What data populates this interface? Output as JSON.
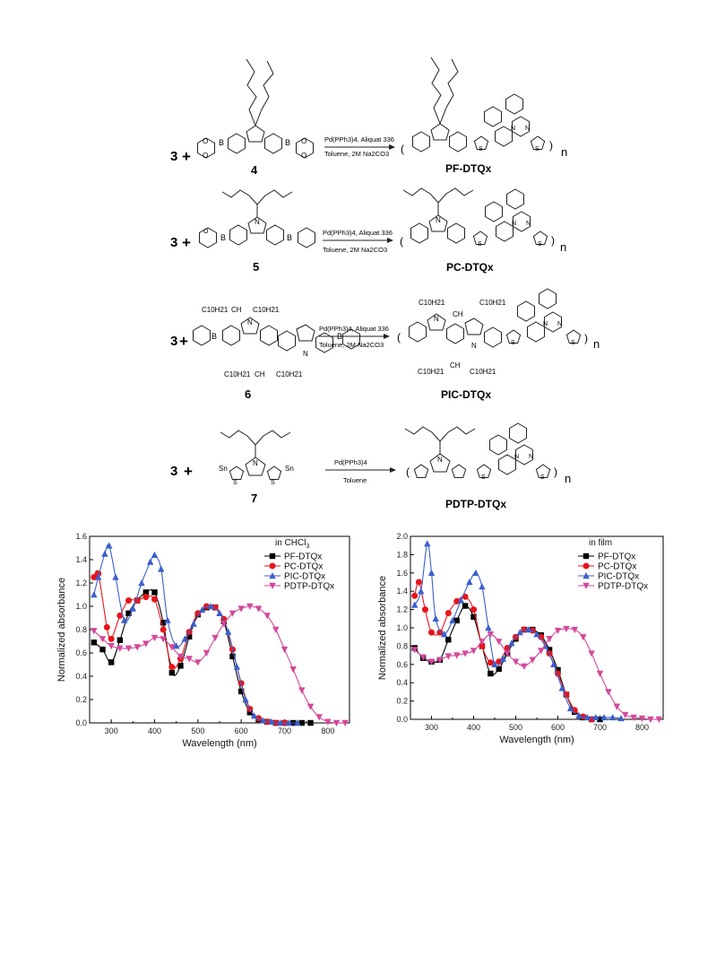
{
  "scheme": {
    "reactions": [
      {
        "reagent_prefix": "3",
        "monomer_label": "4",
        "conditions_top": "Pd(PPh3)4, Aliquat 336",
        "conditions_bottom": "Toluene, 2M Na2CO3",
        "product": "PF-DTQx"
      },
      {
        "reagent_prefix": "3",
        "monomer_label": "5",
        "conditions_top": "Pd(PPh3)4, Aliquat 336",
        "conditions_bottom": "Toluene, 2M Na2CO3",
        "product": "PC-DTQx"
      },
      {
        "reagent_prefix": "3",
        "monomer_label": "6",
        "conditions_top": "Pd(PPh3)4, Aliquat 336",
        "conditions_bottom": "Toluene, 2M Na2CO3",
        "product": "PIC-DTQx"
      },
      {
        "reagent_prefix": "3",
        "monomer_label": "7",
        "conditions_top": "Pd(PPh3)4",
        "conditions_bottom": "Toluene",
        "product": "PDTP-DTQx"
      }
    ],
    "atom_labels": {
      "boron": "B",
      "oxygen": "O",
      "nitrogen": "N",
      "sulfur": "S",
      "tin": "Sn",
      "repeat": "n",
      "alkyl": "C10H21",
      "ch": "CH"
    }
  },
  "chart_data": [
    {
      "type": "line",
      "legend_title": "in CHCl3",
      "xlabel": "Wavelength (nm)",
      "ylabel": "Normalized absorbance",
      "xlim": [
        250,
        850
      ],
      "ylim": [
        0.0,
        1.6
      ],
      "xticks": [
        300,
        400,
        500,
        600,
        700,
        800
      ],
      "yticks": [
        0.0,
        0.2,
        0.4,
        0.6,
        0.8,
        1.0,
        1.2,
        1.4,
        1.6
      ],
      "legend_position": "top-right",
      "series": [
        {
          "name": "PF-DTQx",
          "color": "#000000",
          "marker": "square",
          "points": [
            [
              260,
              0.69
            ],
            [
              280,
              0.63
            ],
            [
              300,
              0.52
            ],
            [
              320,
              0.71
            ],
            [
              340,
              0.94
            ],
            [
              360,
              1.05
            ],
            [
              380,
              1.12
            ],
            [
              400,
              1.12
            ],
            [
              420,
              0.86
            ],
            [
              440,
              0.43
            ],
            [
              460,
              0.49
            ],
            [
              480,
              0.74
            ],
            [
              500,
              0.93
            ],
            [
              520,
              0.99
            ],
            [
              540,
              0.99
            ],
            [
              560,
              0.87
            ],
            [
              580,
              0.57
            ],
            [
              600,
              0.27
            ],
            [
              620,
              0.09
            ],
            [
              640,
              0.03
            ],
            [
              660,
              0.01
            ],
            [
              680,
              0.0
            ],
            [
              700,
              0.0
            ],
            [
              720,
              0.0
            ],
            [
              740,
              0.0
            ],
            [
              760,
              0.0
            ]
          ]
        },
        {
          "name": "PC-DTQx",
          "color": "#e8141b",
          "marker": "circle",
          "points": [
            [
              260,
              1.25
            ],
            [
              270,
              1.28
            ],
            [
              290,
              0.82
            ],
            [
              300,
              0.72
            ],
            [
              320,
              0.92
            ],
            [
              340,
              1.05
            ],
            [
              360,
              1.05
            ],
            [
              380,
              1.08
            ],
            [
              400,
              1.06
            ],
            [
              420,
              0.8
            ],
            [
              440,
              0.48
            ],
            [
              460,
              0.55
            ],
            [
              480,
              0.78
            ],
            [
              500,
              0.94
            ],
            [
              520,
              1.0
            ],
            [
              540,
              0.99
            ],
            [
              560,
              0.89
            ],
            [
              580,
              0.63
            ],
            [
              600,
              0.34
            ],
            [
              620,
              0.12
            ],
            [
              640,
              0.04
            ],
            [
              660,
              0.01
            ],
            [
              680,
              0.0
            ],
            [
              700,
              0.0
            ]
          ]
        },
        {
          "name": "PIC-DTQx",
          "color": "#3a5fcd",
          "marker": "triangle-up",
          "points": [
            [
              260,
              1.1
            ],
            [
              270,
              1.25
            ],
            [
              285,
              1.45
            ],
            [
              295,
              1.52
            ],
            [
              310,
              1.25
            ],
            [
              330,
              0.88
            ],
            [
              350,
              0.98
            ],
            [
              370,
              1.2
            ],
            [
              390,
              1.38
            ],
            [
              400,
              1.44
            ],
            [
              415,
              1.32
            ],
            [
              430,
              0.88
            ],
            [
              450,
              0.66
            ],
            [
              470,
              0.72
            ],
            [
              490,
              0.85
            ],
            [
              510,
              0.97
            ],
            [
              530,
              1.0
            ],
            [
              550,
              0.94
            ],
            [
              570,
              0.78
            ],
            [
              590,
              0.48
            ],
            [
              610,
              0.2
            ],
            [
              630,
              0.06
            ],
            [
              650,
              0.02
            ],
            [
              670,
              0.01
            ],
            [
              690,
              0.0
            ],
            [
              710,
              0.0
            ],
            [
              730,
              0.0
            ]
          ]
        },
        {
          "name": "PDTP-DTQx",
          "color": "#d4489b",
          "marker": "triangle-down",
          "points": [
            [
              260,
              0.79
            ],
            [
              280,
              0.72
            ],
            [
              300,
              0.66
            ],
            [
              320,
              0.64
            ],
            [
              340,
              0.64
            ],
            [
              360,
              0.65
            ],
            [
              380,
              0.68
            ],
            [
              400,
              0.73
            ],
            [
              420,
              0.72
            ],
            [
              440,
              0.65
            ],
            [
              460,
              0.57
            ],
            [
              480,
              0.55
            ],
            [
              500,
              0.52
            ],
            [
              520,
              0.6
            ],
            [
              540,
              0.73
            ],
            [
              560,
              0.85
            ],
            [
              580,
              0.94
            ],
            [
              600,
              0.98
            ],
            [
              620,
              1.0
            ],
            [
              640,
              0.98
            ],
            [
              660,
              0.92
            ],
            [
              680,
              0.8
            ],
            [
              700,
              0.63
            ],
            [
              720,
              0.46
            ],
            [
              740,
              0.28
            ],
            [
              760,
              0.14
            ],
            [
              780,
              0.05
            ],
            [
              800,
              0.01
            ],
            [
              820,
              0.0
            ],
            [
              840,
              0.0
            ]
          ]
        }
      ]
    },
    {
      "type": "line",
      "legend_title": "in film",
      "xlabel": "Wavelength (nm)",
      "ylabel": "Normalized absorbance",
      "xlim": [
        250,
        850
      ],
      "ylim": [
        0.0,
        2.0
      ],
      "xticks": [
        300,
        400,
        500,
        600,
        700,
        800
      ],
      "yticks": [
        0.0,
        0.2,
        0.4,
        0.6,
        0.8,
        1.0,
        1.2,
        1.4,
        1.6,
        1.8,
        2.0
      ],
      "legend_position": "top-right",
      "series": [
        {
          "name": "PF-DTQx",
          "color": "#000000",
          "marker": "square",
          "points": [
            [
              260,
              0.78
            ],
            [
              280,
              0.67
            ],
            [
              300,
              0.63
            ],
            [
              320,
              0.65
            ],
            [
              340,
              0.87
            ],
            [
              360,
              1.08
            ],
            [
              380,
              1.24
            ],
            [
              400,
              1.12
            ],
            [
              420,
              0.8
            ],
            [
              440,
              0.5
            ],
            [
              460,
              0.55
            ],
            [
              480,
              0.72
            ],
            [
              500,
              0.88
            ],
            [
              520,
              0.98
            ],
            [
              540,
              0.98
            ],
            [
              560,
              0.92
            ],
            [
              580,
              0.76
            ],
            [
              600,
              0.54
            ],
            [
              620,
              0.27
            ],
            [
              640,
              0.08
            ],
            [
              660,
              0.02
            ],
            [
              680,
              0.0
            ],
            [
              700,
              0.0
            ]
          ]
        },
        {
          "name": "PC-DTQx",
          "color": "#e8141b",
          "marker": "circle",
          "points": [
            [
              260,
              1.35
            ],
            [
              270,
              1.5
            ],
            [
              285,
              1.2
            ],
            [
              300,
              0.95
            ],
            [
              320,
              0.95
            ],
            [
              340,
              1.16
            ],
            [
              360,
              1.29
            ],
            [
              380,
              1.34
            ],
            [
              400,
              1.2
            ],
            [
              420,
              0.8
            ],
            [
              440,
              0.62
            ],
            [
              460,
              0.63
            ],
            [
              480,
              0.78
            ],
            [
              500,
              0.9
            ],
            [
              520,
              0.98
            ],
            [
              540,
              0.97
            ],
            [
              560,
              0.9
            ],
            [
              580,
              0.72
            ],
            [
              600,
              0.5
            ],
            [
              620,
              0.27
            ],
            [
              640,
              0.1
            ],
            [
              660,
              0.03
            ],
            [
              680,
              0.0
            ]
          ]
        },
        {
          "name": "PIC-DTQx",
          "color": "#3a5fcd",
          "marker": "triangle-up",
          "points": [
            [
              260,
              1.25
            ],
            [
              275,
              1.4
            ],
            [
              290,
              1.92
            ],
            [
              300,
              1.6
            ],
            [
              310,
              1.1
            ],
            [
              330,
              0.93
            ],
            [
              350,
              1.08
            ],
            [
              370,
              1.3
            ],
            [
              390,
              1.5
            ],
            [
              405,
              1.6
            ],
            [
              420,
              1.45
            ],
            [
              435,
              1.0
            ],
            [
              450,
              0.6
            ],
            [
              470,
              0.66
            ],
            [
              490,
              0.83
            ],
            [
              510,
              0.95
            ],
            [
              530,
              0.98
            ],
            [
              550,
              0.93
            ],
            [
              570,
              0.8
            ],
            [
              590,
              0.6
            ],
            [
              610,
              0.34
            ],
            [
              630,
              0.12
            ],
            [
              650,
              0.04
            ],
            [
              670,
              0.02
            ],
            [
              690,
              0.02
            ],
            [
              710,
              0.02
            ],
            [
              730,
              0.02
            ],
            [
              750,
              0.01
            ]
          ]
        },
        {
          "name": "PDTP-DTQx",
          "color": "#d4489b",
          "marker": "triangle-down",
          "points": [
            [
              260,
              0.76
            ],
            [
              280,
              0.68
            ],
            [
              300,
              0.63
            ],
            [
              320,
              0.65
            ],
            [
              340,
              0.69
            ],
            [
              360,
              0.7
            ],
            [
              380,
              0.72
            ],
            [
              400,
              0.75
            ],
            [
              420,
              0.85
            ],
            [
              440,
              0.93
            ],
            [
              460,
              0.85
            ],
            [
              480,
              0.72
            ],
            [
              500,
              0.63
            ],
            [
              520,
              0.58
            ],
            [
              540,
              0.65
            ],
            [
              560,
              0.75
            ],
            [
              580,
              0.88
            ],
            [
              600,
              0.97
            ],
            [
              620,
              0.99
            ],
            [
              640,
              0.98
            ],
            [
              660,
              0.9
            ],
            [
              680,
              0.72
            ],
            [
              700,
              0.5
            ],
            [
              720,
              0.3
            ],
            [
              740,
              0.14
            ],
            [
              760,
              0.05
            ],
            [
              780,
              0.02
            ],
            [
              800,
              0.01
            ],
            [
              820,
              0.0
            ],
            [
              840,
              0.0
            ]
          ]
        }
      ]
    }
  ]
}
